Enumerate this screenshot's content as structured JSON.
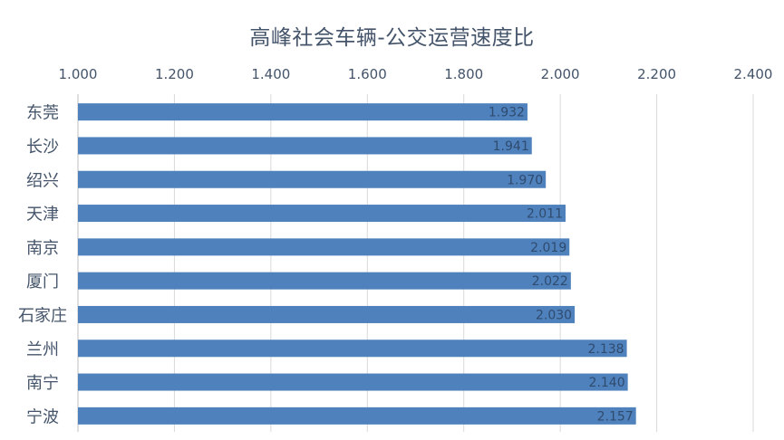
{
  "chart_data": {
    "type": "bar",
    "orientation": "horizontal",
    "title": "高峰社会车辆-公交运营速度比",
    "xlabel": "",
    "ylabel": "",
    "xlim": [
      1.0,
      2.4
    ],
    "x_ticks": [
      1.0,
      1.2,
      1.4,
      1.6,
      1.8,
      2.0,
      2.2,
      2.4
    ],
    "tick_labels": [
      "1.000",
      "1.200",
      "1.400",
      "1.600",
      "1.800",
      "2.000",
      "2.200",
      "2.400"
    ],
    "x_axis_position": "top",
    "grid": "vertical",
    "legend": "none",
    "bar_color": "#4f81bd",
    "categories": [
      "东莞",
      "长沙",
      "绍兴",
      "天津",
      "南京",
      "厦门",
      "石家庄",
      "兰州",
      "南宁",
      "宁波"
    ],
    "values": [
      1.932,
      1.941,
      1.97,
      2.011,
      2.019,
      2.022,
      2.03,
      2.138,
      2.14,
      2.157
    ],
    "value_labels": [
      "1.932",
      "1.941",
      "1.970",
      "2.011",
      "2.019",
      "2.022",
      "2.030",
      "2.138",
      "2.140",
      "2.157"
    ]
  }
}
